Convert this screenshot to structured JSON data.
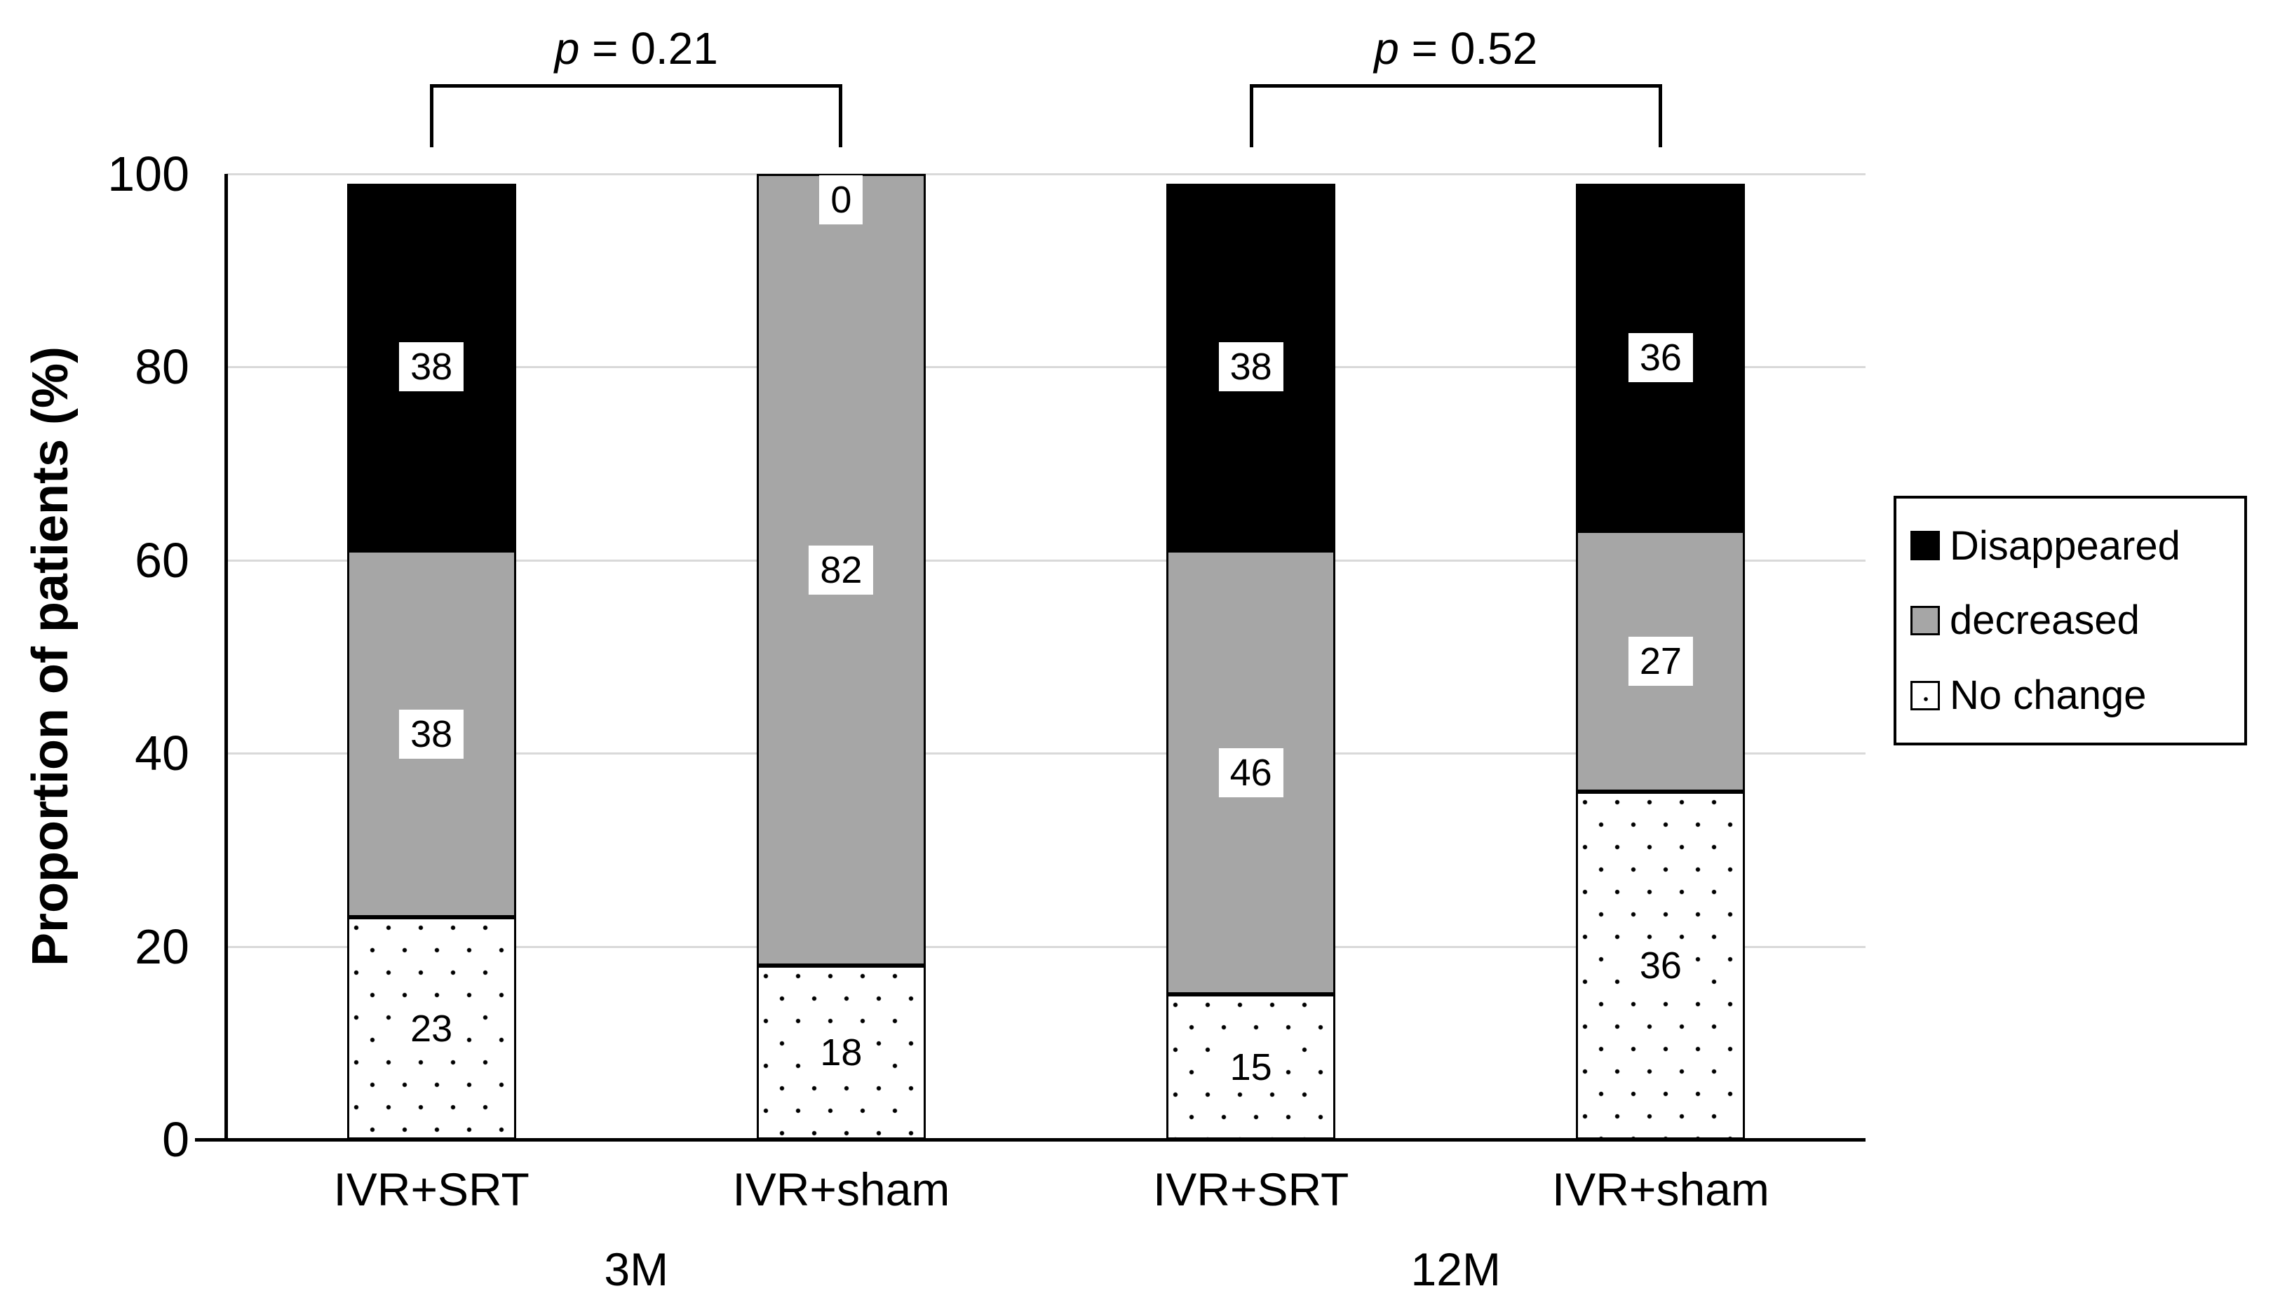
{
  "figure": {
    "ylabel": "Proportion of patients (%)"
  },
  "legend": {
    "items": [
      {
        "label": "Disappeared",
        "swatch": "black-square"
      },
      {
        "label": "decreased",
        "swatch": "gray-square"
      },
      {
        "label": "No change",
        "swatch": "dotted-square"
      }
    ]
  },
  "chart_data": {
    "type": "bar",
    "stacked": true,
    "title": "",
    "xlabel": "",
    "ylabel": "Proportion of patients (%)",
    "ylim": [
      0,
      100
    ],
    "yticks": [
      0,
      20,
      40,
      60,
      80,
      100
    ],
    "grid": true,
    "legend_position": "right",
    "categories": [
      "IVR+SRT",
      "IVR+sham",
      "IVR+SRT",
      "IVR+sham"
    ],
    "group_labels": [
      "3M",
      "12M"
    ],
    "category_group_index": [
      0,
      0,
      1,
      1
    ],
    "series": [
      {
        "name": "No change",
        "style": "dotted",
        "color": "#ffffff",
        "values": [
          23,
          18,
          15,
          36
        ]
      },
      {
        "name": "decreased",
        "style": "gray",
        "color": "#a6a6a6",
        "values": [
          38,
          82,
          46,
          27
        ]
      },
      {
        "name": "Disappeared",
        "style": "black",
        "color": "#000000",
        "values": [
          38,
          0,
          38,
          36
        ]
      }
    ],
    "bar_totals": [
      99,
      100,
      99,
      99
    ],
    "annotations": [
      {
        "symbol": "p",
        "rest": " = 0.21",
        "bars": [
          0,
          1
        ]
      },
      {
        "symbol": "p",
        "rest": " = 0.52",
        "bars": [
          2,
          3
        ]
      }
    ],
    "colors": {
      "black": "#000000",
      "gray": "#a6a6a6",
      "gridline": "#d9d9d9",
      "background": "#ffffff"
    }
  }
}
